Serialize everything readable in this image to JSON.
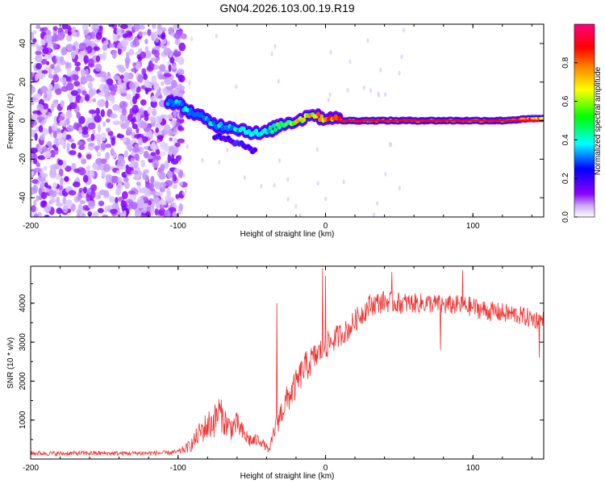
{
  "figure_title": "GN04.2026.103.00.19.R19",
  "chart_data": [
    {
      "type": "heatmap",
      "xlabel": "Height of straight line (km)",
      "ylabel": "Frequency (Hz)",
      "xlim": [
        -200,
        148
      ],
      "ylim": [
        -50,
        50
      ],
      "xticks": [
        -200,
        -100,
        0,
        100
      ],
      "yticks": [
        -40,
        -20,
        0,
        20,
        40
      ],
      "colorbar": {
        "label": "Normalized spectral amplitude",
        "range": [
          0,
          1
        ],
        "ticks": [
          0.0,
          0.2,
          0.4,
          0.6,
          0.8
        ],
        "tick_labels": [
          "0.0",
          "0.2",
          "0.4",
          "0.6",
          "0.8"
        ],
        "colors": [
          "#ffffff",
          "#8c00ff",
          "#0000ff",
          "#00ffff",
          "#00ff00",
          "#ffff00",
          "#ff8000",
          "#ff0000",
          "#ff0080"
        ]
      },
      "noise_region": {
        "x_range": [
          -200,
          -100
        ],
        "freq_range": [
          -50,
          50
        ],
        "typical_amplitude": [
          0.0,
          0.15
        ]
      },
      "signal_track": {
        "x": [
          -107,
          -100,
          -95,
          -90,
          -85,
          -80,
          -75,
          -70,
          -65,
          -60,
          -55,
          -50,
          -45,
          -40,
          -35,
          -30,
          -25,
          -20,
          -15,
          -10,
          -5,
          0,
          5,
          10,
          20,
          40,
          60,
          80,
          100,
          120,
          140,
          148
        ],
        "freq": [
          10,
          9,
          6,
          4,
          2,
          0,
          -2,
          -3,
          -3,
          -4,
          -5,
          -6,
          -7,
          -6,
          -4,
          -2,
          -1,
          0,
          1,
          4,
          2,
          1,
          2,
          0,
          0,
          0,
          0,
          0,
          0,
          0,
          1,
          1
        ],
        "amplitude": [
          0.35,
          0.35,
          0.35,
          0.3,
          0.3,
          0.35,
          0.35,
          0.4,
          0.35,
          0.4,
          0.4,
          0.5,
          0.5,
          0.5,
          0.55,
          0.6,
          0.6,
          0.7,
          0.75,
          0.75,
          0.8,
          0.85,
          0.9,
          0.9,
          0.9,
          0.9,
          0.9,
          0.9,
          0.9,
          0.9,
          0.88,
          0.85
        ]
      },
      "secondary_track": {
        "x": [
          -75,
          -65,
          -60,
          -55,
          -50,
          -47
        ],
        "freq": [
          -8,
          -10,
          -12,
          -13,
          -15,
          -16
        ],
        "amplitude": [
          0.25,
          0.25,
          0.3,
          0.25,
          0.25,
          0.2
        ]
      }
    },
    {
      "type": "line",
      "xlabel": "Height of straight line (km)",
      "ylabel": "SNR (10 * v/v)",
      "xlim": [
        -200,
        148
      ],
      "ylim": [
        0,
        4950
      ],
      "xticks": [
        -200,
        -100,
        0,
        100
      ],
      "yticks": [
        1000,
        2000,
        3000,
        4000
      ],
      "series": [
        {
          "name": "SNR",
          "color": "#ee3333",
          "x": [
            -200,
            -180,
            -160,
            -140,
            -120,
            -105,
            -100,
            -95,
            -90,
            -85,
            -80,
            -75,
            -72,
            -70,
            -65,
            -60,
            -55,
            -50,
            -45,
            -40,
            -38,
            -35,
            -30,
            -25,
            -20,
            -15,
            -10,
            -5,
            0,
            5,
            10,
            15,
            20,
            25,
            30,
            40,
            50,
            60,
            70,
            80,
            90,
            100,
            110,
            120,
            130,
            140,
            148
          ],
          "y": [
            150,
            140,
            150,
            145,
            150,
            160,
            180,
            260,
            400,
            700,
            850,
            1000,
            1250,
            1050,
            800,
            900,
            600,
            450,
            500,
            300,
            200,
            700,
            1200,
            1600,
            1900,
            2300,
            2500,
            2700,
            2900,
            3050,
            3200,
            3300,
            3550,
            3750,
            3950,
            4050,
            4000,
            4000,
            4000,
            3950,
            3950,
            3900,
            3800,
            3750,
            3700,
            3600,
            3550
          ],
          "noise_amplitude": [
            60,
            60,
            60,
            60,
            60,
            60,
            70,
            120,
            200,
            300,
            400,
            450,
            450,
            400,
            350,
            300,
            250,
            180,
            150,
            100,
            80,
            250,
            350,
            400,
            400,
            400,
            400,
            350,
            350,
            330,
            300,
            300,
            300,
            300,
            300,
            280,
            280,
            260,
            260,
            260,
            260,
            260,
            260,
            260,
            250,
            250,
            250
          ],
          "spikes": [
            {
              "x": -33,
              "y": 4000
            },
            {
              "x": -2,
              "y": 4900
            },
            {
              "x": 0,
              "y": 4700
            },
            {
              "x": 45,
              "y": 4800
            },
            {
              "x": 93,
              "y": 4850
            },
            {
              "x": 78,
              "y": 2800
            },
            {
              "x": 145,
              "y": 2600
            }
          ]
        }
      ]
    }
  ]
}
